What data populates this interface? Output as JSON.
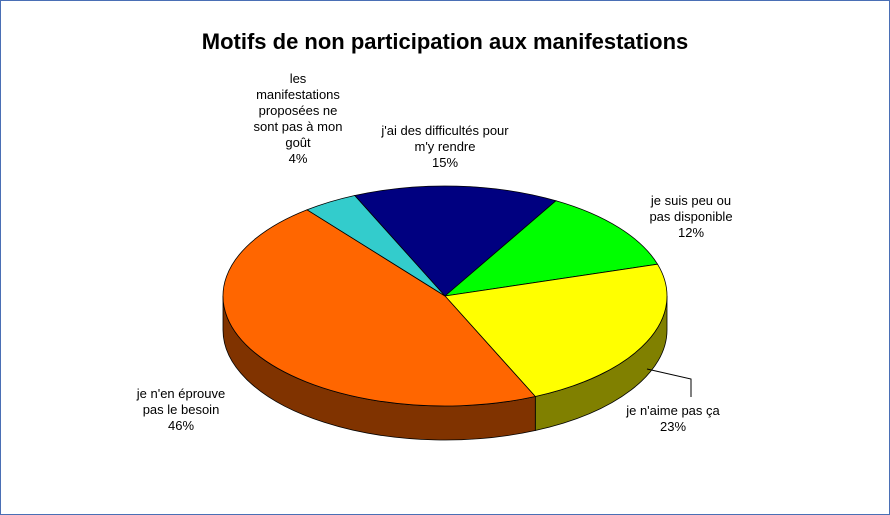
{
  "chart_data": {
    "type": "pie",
    "title": "Motifs de non participation aux manifestations",
    "categories": [
      "j'ai des difficultés pour m'y rendre",
      "je suis peu ou pas disponible",
      "je n'aime pas ça",
      "je n'en éprouve pas le besoin",
      "les manifestations proposées ne sont pas à mon goût"
    ],
    "values": [
      15,
      12,
      23,
      46,
      4
    ],
    "value_labels": [
      "15%",
      "12%",
      "23%",
      "46%",
      "4%"
    ],
    "colors": [
      "#000080",
      "#00ff00",
      "#ffff00",
      "#ff6600",
      "#33cccc"
    ],
    "three_d": true
  }
}
